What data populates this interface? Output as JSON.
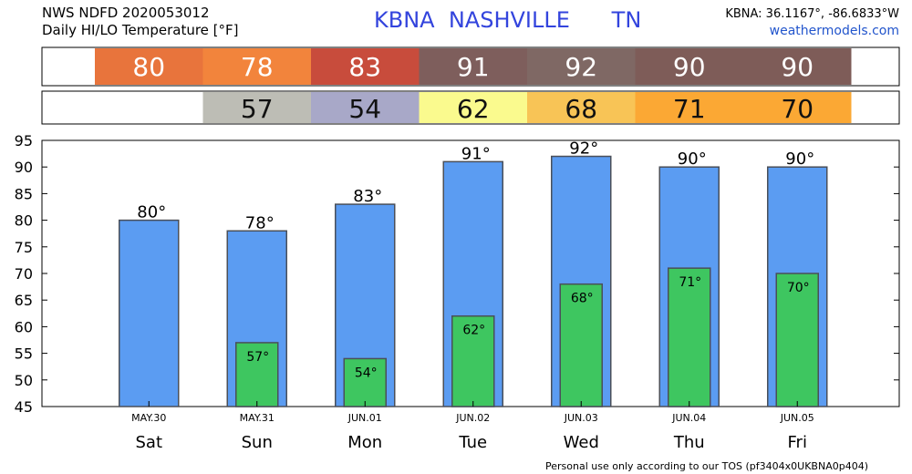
{
  "header": {
    "line1": "NWS NDFD 2020053012",
    "line2": "Daily HI/LO Temperature [°F]",
    "station_title": "KBNA  NASHVILLE      TN",
    "coords": "KBNA: 36.1167°, -86.6833°W",
    "site": "weathermodels.com"
  },
  "footer": "Personal use only according to our TOS (pf3404x0UKBNA0p404)",
  "degree_symbol": "°",
  "colors": {
    "hi_bar": "#5b9cf2",
    "lo_bar": "#3ec660",
    "bar_stroke": "#4a4f59",
    "title_blue": "#3344dd",
    "site_blue": "#2255cc"
  },
  "hi_strip": [
    {
      "value": "80",
      "color": "#e8743c"
    },
    {
      "value": "78",
      "color": "#f2843c"
    },
    {
      "value": "83",
      "color": "#c84c3c"
    },
    {
      "value": "91",
      "color": "#7e5e5c"
    },
    {
      "value": "92",
      "color": "#7f6864"
    },
    {
      "value": "90",
      "color": "#7e5c58"
    },
    {
      "value": "90",
      "color": "#7e5c58"
    }
  ],
  "lo_strip": [
    {
      "value": "",
      "color": "#ffffff"
    },
    {
      "value": "57",
      "color": "#bdbdb5"
    },
    {
      "value": "54",
      "color": "#a8a8c8"
    },
    {
      "value": "62",
      "color": "#fafa8e"
    },
    {
      "value": "68",
      "color": "#f8c456"
    },
    {
      "value": "71",
      "color": "#fba834"
    },
    {
      "value": "70",
      "color": "#fba834"
    }
  ],
  "chart_data": {
    "type": "bar",
    "categories": [
      "Sat",
      "Sun",
      "Mon",
      "Tue",
      "Wed",
      "Thu",
      "Fri"
    ],
    "dates": [
      "MAY.30",
      "MAY.31",
      "JUN.01",
      "JUN.02",
      "JUN.03",
      "JUN.04",
      "JUN.05"
    ],
    "series": [
      {
        "values": [
          80,
          78,
          83,
          91,
          92,
          90,
          90
        ]
      },
      {
        "values": [
          null,
          57,
          54,
          62,
          68,
          71,
          70
        ]
      }
    ],
    "ylim": [
      45,
      95
    ],
    "yticks": [
      45,
      50,
      55,
      60,
      65,
      70,
      75,
      80,
      85,
      90,
      95
    ],
    "grid": false
  }
}
